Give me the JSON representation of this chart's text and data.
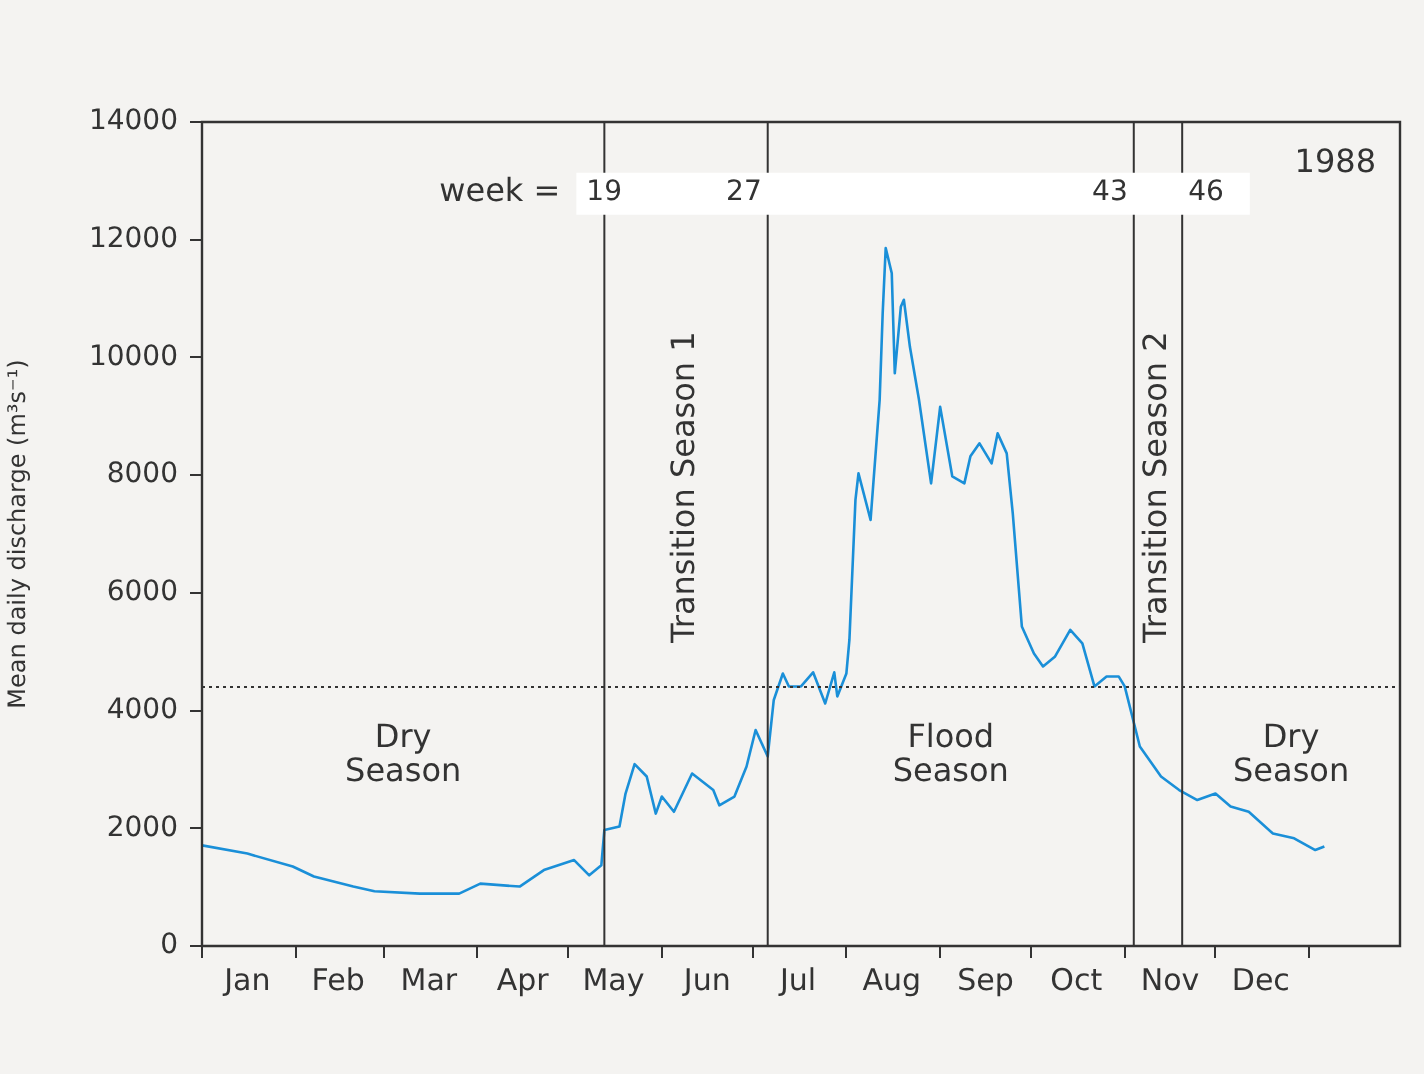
{
  "chart_data": {
    "type": "line",
    "ylabel": "Mean daily discharge (m³s⁻¹)",
    "xlim": [
      "1988-01-01",
      "1989-01-31"
    ],
    "ylim": [
      0,
      14000
    ],
    "xticks": [
      {
        "value": "1988-01-01",
        "label": null
      },
      {
        "value": "1988-01-16",
        "label": "Jan"
      },
      {
        "value": "1988-02-01",
        "label": null
      },
      {
        "value": "1988-02-15",
        "label": "Feb"
      },
      {
        "value": "1988-03-01",
        "label": null
      },
      {
        "value": "1988-03-16",
        "label": "Mar"
      },
      {
        "value": "1988-04-01",
        "label": null
      },
      {
        "value": "1988-04-16",
        "label": "Apr"
      },
      {
        "value": "1988-05-01",
        "label": null
      },
      {
        "value": "1988-05-16",
        "label": "May"
      },
      {
        "value": "1988-06-01",
        "label": null
      },
      {
        "value": "1988-06-16",
        "label": "Jun"
      },
      {
        "value": "1988-07-01",
        "label": null
      },
      {
        "value": "1988-07-16",
        "label": "Jul"
      },
      {
        "value": "1988-08-01",
        "label": null
      },
      {
        "value": "1988-08-16",
        "label": "Aug"
      },
      {
        "value": "1988-09-01",
        "label": null
      },
      {
        "value": "1988-09-16",
        "label": "Sep"
      },
      {
        "value": "1988-10-01",
        "label": null
      },
      {
        "value": "1988-10-16",
        "label": "Oct"
      },
      {
        "value": "1988-11-01",
        "label": null
      },
      {
        "value": "1988-11-16",
        "label": "Nov"
      },
      {
        "value": "1988-12-01",
        "label": null
      },
      {
        "value": "1988-12-16",
        "label": "Dec"
      },
      {
        "value": "1989-01-01",
        "label": null
      }
    ],
    "yticks": [
      0,
      2000,
      4000,
      6000,
      8000,
      10000,
      12000,
      14000
    ],
    "grid": false,
    "legend": false,
    "marker": "none",
    "line_style": "solid",
    "series": [
      {
        "color": "#1a8fd8",
        "x": [
          "1988-01-01",
          "1988-01-16",
          "1988-01-31",
          "1988-02-07",
          "1988-02-20",
          "1988-02-27",
          "1988-03-13",
          "1988-03-26",
          "1988-04-02",
          "1988-04-15",
          "1988-04-23",
          "1988-05-03",
          "1988-05-08",
          "1988-05-12",
          "1988-05-13",
          "1988-05-18",
          "1988-05-20",
          "1988-05-23",
          "1988-05-27",
          "1988-05-30",
          "1988-06-01",
          "1988-06-05",
          "1988-06-11",
          "1988-06-18",
          "1988-06-20",
          "1988-06-25",
          "1988-06-29",
          "1988-07-02",
          "1988-07-06",
          "1988-07-08",
          "1988-07-11",
          "1988-07-13",
          "1988-07-17",
          "1988-07-21",
          "1988-07-25",
          "1988-07-28",
          "1988-07-29",
          "1988-08-01",
          "1988-08-02",
          "1988-08-04",
          "1988-08-05",
          "1988-08-09",
          "1988-08-12",
          "1988-08-13",
          "1988-08-14",
          "1988-08-16",
          "1988-08-17",
          "1988-08-19",
          "1988-08-20",
          "1988-08-22",
          "1988-08-25",
          "1988-08-29",
          "1988-09-01",
          "1988-09-05",
          "1988-09-09",
          "1988-09-11",
          "1988-09-14",
          "1988-09-18",
          "1988-09-20",
          "1988-09-23",
          "1988-09-25",
          "1988-09-28",
          "1988-10-02",
          "1988-10-05",
          "1988-10-09",
          "1988-10-14",
          "1988-10-18",
          "1988-10-22",
          "1988-10-26",
          "1988-10-30",
          "1988-11-01",
          "1988-11-06",
          "1988-11-13",
          "1988-11-19",
          "1988-11-25",
          "1988-12-01",
          "1988-12-06",
          "1988-12-12",
          "1988-12-20",
          "1988-12-27",
          "1989-01-03",
          "1989-01-06"
        ],
        "values": [
          1710,
          1570,
          1350,
          1180,
          1010,
          930,
          890,
          890,
          1060,
          1010,
          1290,
          1460,
          1200,
          1370,
          1970,
          2030,
          2590,
          3090,
          2880,
          2250,
          2540,
          2280,
          2930,
          2650,
          2390,
          2540,
          3050,
          3670,
          3220,
          4180,
          4630,
          4410,
          4410,
          4650,
          4120,
          4650,
          4240,
          4630,
          5200,
          7580,
          8030,
          7240,
          9280,
          10750,
          11860,
          11430,
          9730,
          10860,
          10980,
          10180,
          9280,
          7860,
          9160,
          7980,
          7860,
          8320,
          8540,
          8200,
          8710,
          8370,
          7350,
          5430,
          4970,
          4750,
          4920,
          5370,
          5140,
          4410,
          4580,
          4580,
          4410,
          3390,
          2880,
          2650,
          2480,
          2590,
          2370,
          2280,
          1910,
          1830,
          1630,
          1690
        ]
      }
    ],
    "ref_lines": [
      {
        "axis": "y",
        "value": 4400,
        "line_style": "dotted"
      },
      {
        "axis": "x",
        "value": "1988-05-13"
      },
      {
        "axis": "x",
        "value": "1988-07-06"
      },
      {
        "axis": "x",
        "value": "1988-11-04"
      },
      {
        "axis": "x",
        "value": "1988-11-20"
      }
    ],
    "annotations": [
      "week =",
      "1988",
      "Transition Season 1",
      "Transition Season 2",
      "Dry Season",
      "Flood Season",
      "Dry Season",
      {
        "text": "19",
        "x": "1988-05-13",
        "y": 12800
      },
      {
        "text": "27",
        "x": "1988-07-06",
        "y": 12800
      },
      {
        "text": "43",
        "x": "1988-11-04",
        "y": 12800
      },
      {
        "text": "46",
        "x": "1988-11-20",
        "y": 12800
      }
    ]
  }
}
